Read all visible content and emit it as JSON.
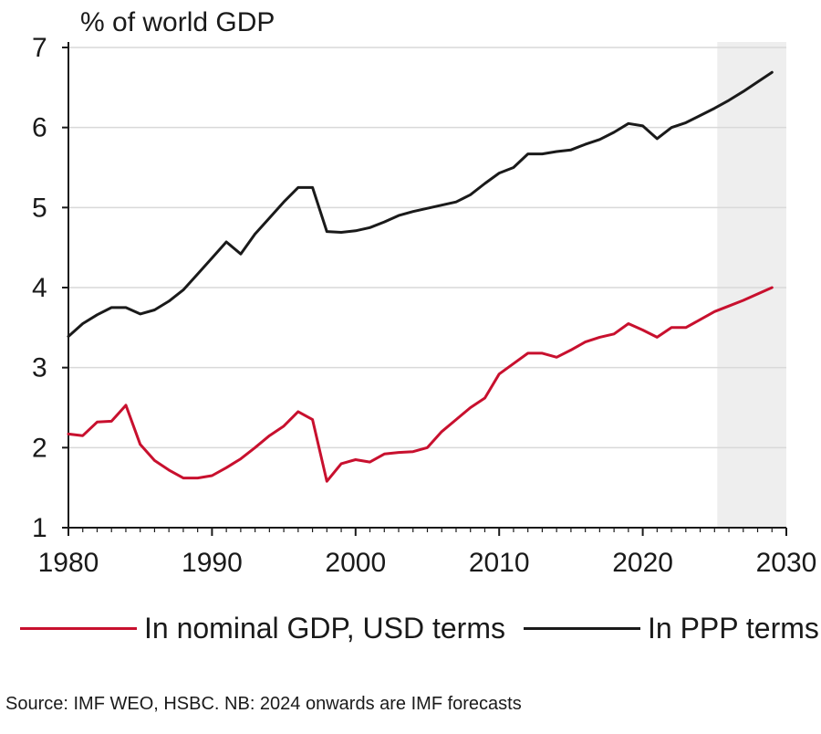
{
  "chart_data": {
    "type": "line",
    "ylabel": "% of world GDP",
    "ylim": [
      1,
      7
    ],
    "yticks": [
      1,
      2,
      3,
      4,
      5,
      6,
      7
    ],
    "xlim": [
      1980,
      2030
    ],
    "xticks": [
      1980,
      1990,
      2000,
      2010,
      2020,
      2030
    ],
    "grid": "horizontal",
    "forecast_shading": {
      "from": 2025,
      "to": 2030,
      "color": "#eeeeee"
    },
    "series": [
      {
        "name": "In nominal GDP, USD terms",
        "color": "#c8102e",
        "x": [
          1980,
          1981,
          1982,
          1983,
          1984,
          1985,
          1986,
          1987,
          1988,
          1989,
          1990,
          1991,
          1992,
          1993,
          1994,
          1995,
          1996,
          1997,
          1998,
          1999,
          2000,
          2001,
          2002,
          2003,
          2004,
          2005,
          2006,
          2007,
          2008,
          2009,
          2010,
          2011,
          2012,
          2013,
          2014,
          2015,
          2016,
          2017,
          2018,
          2019,
          2020,
          2021,
          2022,
          2023,
          2024,
          2025,
          2026,
          2027,
          2028,
          2029
        ],
        "values": [
          2.17,
          2.15,
          2.32,
          2.33,
          2.53,
          2.04,
          1.84,
          1.72,
          1.62,
          1.62,
          1.65,
          1.75,
          1.86,
          2.0,
          2.15,
          2.27,
          2.45,
          2.35,
          1.58,
          1.8,
          1.85,
          1.82,
          1.92,
          1.94,
          1.95,
          2.0,
          2.2,
          2.35,
          2.5,
          2.62,
          2.92,
          3.05,
          3.18,
          3.18,
          3.13,
          3.22,
          3.32,
          3.38,
          3.42,
          3.55,
          3.47,
          3.38,
          3.5,
          3.5,
          3.6,
          3.7,
          3.77,
          3.84,
          3.92,
          4.0
        ]
      },
      {
        "name": "In PPP terms",
        "color": "#1a1a1a",
        "x": [
          1980,
          1981,
          1982,
          1983,
          1984,
          1985,
          1986,
          1987,
          1988,
          1989,
          1990,
          1991,
          1992,
          1993,
          1994,
          1995,
          1996,
          1997,
          1998,
          1999,
          2000,
          2001,
          2002,
          2003,
          2004,
          2005,
          2006,
          2007,
          2008,
          2009,
          2010,
          2011,
          2012,
          2013,
          2014,
          2015,
          2016,
          2017,
          2018,
          2019,
          2020,
          2021,
          2022,
          2023,
          2024,
          2025,
          2026,
          2027,
          2028,
          2029
        ],
        "values": [
          3.39,
          3.55,
          3.66,
          3.75,
          3.75,
          3.67,
          3.72,
          3.83,
          3.97,
          4.17,
          4.37,
          4.57,
          4.42,
          4.67,
          4.87,
          5.07,
          5.25,
          5.25,
          4.7,
          4.69,
          4.71,
          4.75,
          4.82,
          4.9,
          4.95,
          4.99,
          5.03,
          5.07,
          5.16,
          5.3,
          5.43,
          5.5,
          5.67,
          5.67,
          5.7,
          5.72,
          5.79,
          5.85,
          5.94,
          6.05,
          6.02,
          5.86,
          6.0,
          6.06,
          6.15,
          6.24,
          6.34,
          6.45,
          6.57,
          6.69
        ]
      }
    ]
  },
  "legend": [
    {
      "label": "In nominal GDP, USD terms",
      "color": "#c8102e"
    },
    {
      "label": "In PPP terms",
      "color": "#1a1a1a"
    }
  ],
  "source": "Source: IMF WEO, HSBC. NB: 2024 onwards are IMF forecasts"
}
